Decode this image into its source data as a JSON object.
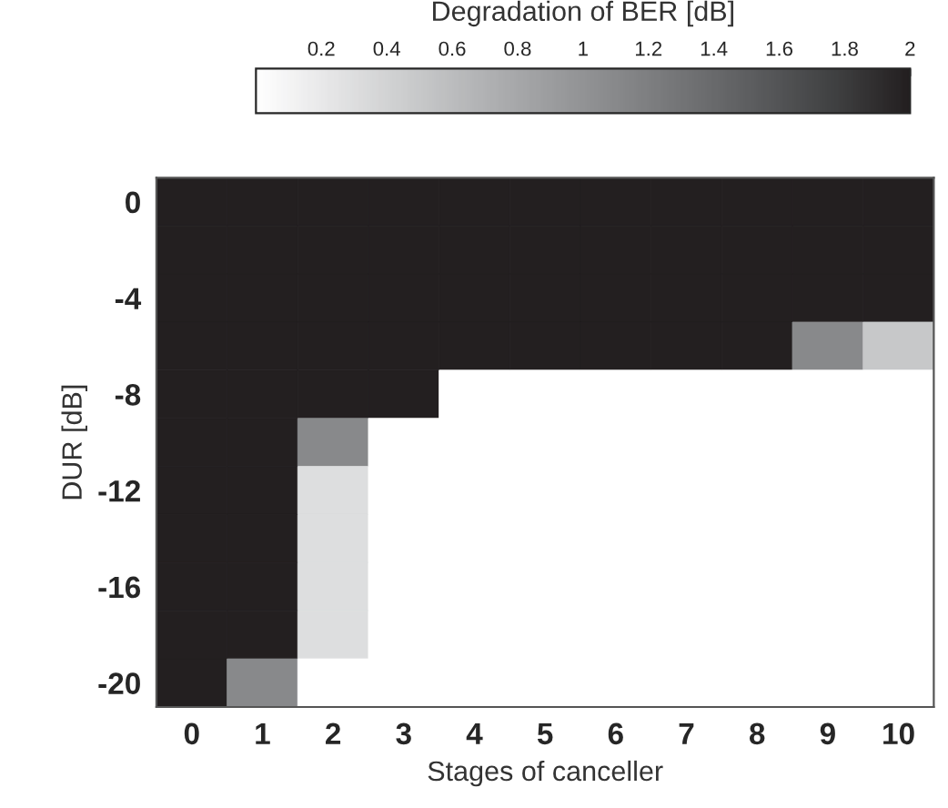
{
  "chart_data": {
    "type": "heatmap",
    "xlabel": "Stages of canceller",
    "ylabel": "DUR [dB]",
    "clabel": "Degradation of BER [dB]",
    "categories": [
      "0",
      "1",
      "2",
      "3",
      "4",
      "5",
      "6",
      "7",
      "8",
      "9",
      "10"
    ],
    "y_categories": [
      "0",
      null,
      "-4",
      null,
      "-8",
      null,
      "-12",
      null,
      "-16",
      null,
      "-20"
    ],
    "cells": [
      [
        2,
        2,
        2,
        2,
        2,
        2,
        2,
        2,
        2,
        2,
        2
      ],
      [
        2,
        2,
        2,
        2,
        2,
        2,
        2,
        2,
        2,
        2,
        2
      ],
      [
        2,
        2,
        2,
        2,
        2,
        2,
        2,
        2,
        2,
        2,
        2
      ],
      [
        2,
        2,
        2,
        2,
        2,
        2,
        2,
        2,
        2,
        1.1,
        0.5
      ],
      [
        2,
        2,
        2,
        2,
        0,
        0,
        0,
        0,
        0,
        0,
        0
      ],
      [
        2,
        2,
        1.1,
        0,
        0,
        0,
        0,
        0,
        0,
        0,
        0
      ],
      [
        2,
        2,
        0.3,
        0,
        0,
        0,
        0,
        0,
        0,
        0,
        0
      ],
      [
        2,
        2,
        0.3,
        0,
        0,
        0,
        0,
        0,
        0,
        0,
        0
      ],
      [
        2,
        2,
        0.3,
        0,
        0,
        0,
        0,
        0,
        0,
        0,
        0
      ],
      [
        2,
        2,
        0.3,
        0,
        0,
        0,
        0,
        0,
        0,
        0,
        0
      ],
      [
        2,
        1.1,
        0,
        0,
        0,
        0,
        0,
        0,
        0,
        0,
        0
      ]
    ],
    "clim": [
      0,
      2
    ],
    "cticks": [
      0.2,
      0.4,
      0.6,
      0.8,
      1,
      1.2,
      1.4,
      1.6,
      1.8,
      2
    ],
    "colors": [
      "#ffffff",
      "#e6e6e7",
      "#cdcecf",
      "#b4b5b7",
      "#9d9ea0",
      "#87888a",
      "#707173",
      "#58595b",
      "#3f4041",
      "#231f20"
    ]
  }
}
